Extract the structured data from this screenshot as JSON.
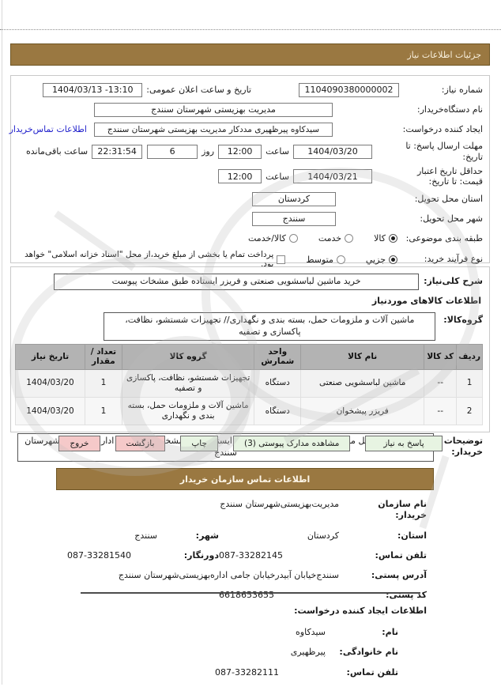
{
  "theme": {
    "header_brown": "#9A7841",
    "button_green": "#E7F4E2",
    "button_pink": "#F5C9C9",
    "link_blue": "#2222CC",
    "table_header_gray": "#B3B3B3"
  },
  "sections": {
    "need_details": "جزئیات اطلاعات نیاز",
    "buyer_contact": "اطلاعات تماس سازمان خریدار"
  },
  "need": {
    "number_label": "شماره نیاز:",
    "number_value": "1104090380000002",
    "announce_label": "تاریخ و ساعت اعلان عمومی:",
    "announce_value": "1404/03/13 -13:10",
    "buyer_org_label": "نام دستگاه‌خریدار:",
    "buyer_org_value": "مدیریت بهزیستی شهرستان سنندج",
    "creator_label": "ایجاد کننده درخواست:",
    "creator_value": "سیدکاوه پیرظهیری مددکار مدیریت بهزیستی شهرستان سنندج",
    "contact_link": "اطلاعات تماس‌خریدار",
    "deadline_label": "مهلت ارسال پاسخ: تا تاریخ:",
    "deadline_date": "1404/03/20",
    "hour_label": "ساعت",
    "deadline_time": "12:00",
    "day_label": "روز",
    "days_value": "6",
    "remaining_value": "22:31:54",
    "remaining_label": "ساعت باقی‌مانده",
    "validity_label": "حداقل تاریخ اعتبار قیمت: تا تاریخ:",
    "validity_date": "1404/03/21",
    "validity_time": "12:00",
    "province_label": "استان محل تحویل:",
    "province_value": "کردستان",
    "city_label": "شهر محل تحویل:",
    "city_value": "سنندج",
    "category_label": "طبقه بندی موضوعی:",
    "category_options": [
      "کالا",
      "خدمت",
      "کالا/خدمت"
    ],
    "category_selected": "کالا",
    "process_label": "نوع فرآیند خرید:",
    "process_options": [
      "جزیي",
      "متوسط"
    ],
    "process_selected": "جزیي",
    "treasury_note": "پرداخت تمام یا بخشی از مبلغ خرید،از محل \"اسناد خزانه اسلامی\" خواهد بود."
  },
  "goods": {
    "desc_label": "شرح کلی‌نیاز:",
    "desc_value": "خرید ماشین لباسشویی صنعتی و فریزر ایستاده طبق مشخات پیوست",
    "items_heading": "اطلاعات کالاهای موردنیاز",
    "group_label": "گروه‌کالا:",
    "group_value": "ماشین آلات و ملزومات حمل، بسته بندی و نگهداری// تجهیزات شستشو، نظافت، پاکسازی و تصفیه",
    "table": {
      "headers": [
        "ردیف",
        "کد کالا",
        "نام کالا",
        "واحد شمارش",
        "گروه کالا",
        "تعداد / مقدار",
        "تاریخ نیاز"
      ],
      "rows": [
        [
          "1",
          "--",
          "ماشین لباسشویی صنعتی",
          "دستگاه",
          "تجهیزات شستشو، نظافت، پاکسازی و تصفیه",
          "1",
          "1404/03/20"
        ],
        [
          "2",
          "--",
          "فریزر پیشخوان",
          "دستگاه",
          "ماشین آلات و ملزومات حمل، بسته بندی و نگهداری",
          "1",
          "1404/03/20"
        ]
      ]
    },
    "notes_label": "توضیحات خریدار:",
    "notes_value": "خرید حمل و تحویل ماشین لباسشویی صنعتی و فریزر ایستاده طبق مشخات پیوست به اداره بهزیستی شهرستان سنندج"
  },
  "actions": {
    "respond": "پاسخ به نیاز",
    "view_attachments": "مشاهده مدارک پیوستی (3)",
    "print": "چاپ",
    "back": "بازگشت",
    "exit": "خروج"
  },
  "contact": {
    "org_label": "نام سازمان خریدار:",
    "org_value": "مدیریت‌بهزیستی‌شهرستان سنندج",
    "province_label": "استان:",
    "province_value": "کردستان",
    "city_label": "شهر:",
    "city_value": "سنندج",
    "phone_label": "تلفن تماس:",
    "phone_value": "087-33282145",
    "fax_label": "دورنگار:",
    "fax_value": "087-33281540",
    "address_label": "آدرس پستی:",
    "address_value": "سنندج‌خیابان آبیدرخیابان جامی اداره‌بهزیستی‌شهرستان سنندج",
    "postal_label": "کد پستی:",
    "postal_value": "6618653655"
  },
  "creator": {
    "heading": "اطلاعات ایجاد کننده درخواست:",
    "name_label": "نام:",
    "name_value": "سیدکاوه",
    "family_label": "نام خانوادگی:",
    "family_value": "پیرظهیری",
    "phone_label": "تلفن تماس:",
    "phone_value": "087-33282111"
  }
}
